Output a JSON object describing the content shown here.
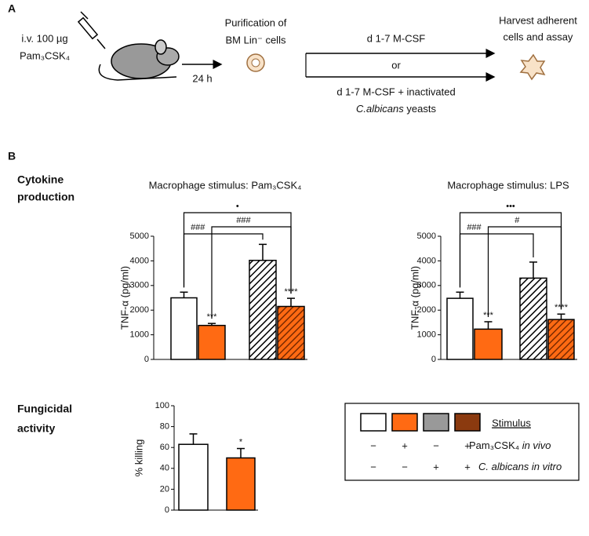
{
  "panel_a": {
    "label": "A",
    "injection": [
      "i.v. 100 µg",
      "Pam₃CSK₄"
    ],
    "delay": "24 h",
    "purification": [
      "Purification of",
      "BM Lin⁻ cells"
    ],
    "culture_top": "d 1-7 M-CSF",
    "or": "or",
    "culture_bottom": "d 1-7 M-CSF + inactivated",
    "culture_bottom_italic": "C.albicans",
    "culture_bottom_end": "yeasts",
    "harvest": [
      "Harvest adherent",
      "cells and assay"
    ]
  },
  "panel_b": {
    "label": "B",
    "row_labels": [
      [
        "Cytokine",
        "production"
      ],
      [
        "Fungicidal",
        "activity"
      ]
    ]
  },
  "chart_data": [
    {
      "type": "bar",
      "title": "Macrophage stimulus: Pam₃CSK₄",
      "y_label": "TNF-α (pg/ml)",
      "categories": [
        null,
        null,
        null,
        null
      ],
      "values": [
        2500,
        1380,
        4020,
        2150
      ],
      "errors": [
        230,
        80,
        650,
        330
      ],
      "colors": [
        "#ffffff",
        "#ff6a13",
        "#ffffff",
        "#ff6a13"
      ],
      "hatched": [
        false,
        false,
        true,
        true
      ],
      "annotations": [
        null,
        "***",
        null,
        "****"
      ],
      "comparisons": [
        "###",
        "###",
        "•"
      ],
      "ylim": [
        0,
        5000
      ],
      "yticks": [
        0,
        1000,
        2000,
        3000,
        4000,
        5000
      ]
    },
    {
      "type": "bar",
      "title": "Macrophage stimulus: LPS",
      "y_label": "TNF-α (pg/ml)",
      "categories": [
        null,
        null,
        null,
        null
      ],
      "values": [
        2480,
        1230,
        3300,
        1620
      ],
      "errors": [
        250,
        300,
        650,
        220
      ],
      "colors": [
        "#ffffff",
        "#ff6a13",
        "#ffffff",
        "#ff6a13"
      ],
      "hatched": [
        false,
        false,
        true,
        true
      ],
      "annotations": [
        null,
        "***",
        null,
        "****"
      ],
      "comparisons": [
        "###",
        "#",
        "•••"
      ],
      "ylim": [
        0,
        5000
      ],
      "yticks": [
        0,
        1000,
        2000,
        3000,
        4000,
        5000
      ]
    },
    {
      "type": "bar",
      "y_label": "% killing",
      "categories": [
        null,
        null
      ],
      "values": [
        63,
        50
      ],
      "errors": [
        10,
        9
      ],
      "colors": [
        "#ffffff",
        "#ff6a13"
      ],
      "hatched": [
        false,
        false
      ],
      "annotations": [
        null,
        "*"
      ],
      "ylim": [
        0,
        100
      ],
      "yticks": [
        0,
        20,
        40,
        60,
        80,
        100
      ]
    }
  ],
  "legend": {
    "title": "Stimulus",
    "colors": [
      "#ffffff",
      "#ff6a13",
      "#999999",
      "#8b3a0f"
    ],
    "rows": [
      {
        "label": "Pam₃CSK₄",
        "label_italic": "in vivo",
        "signs": [
          "−",
          "+",
          "−",
          "+"
        ]
      },
      {
        "label_italic": "C. albicans in vitro",
        "signs": [
          "−",
          "−",
          "+",
          "+"
        ]
      }
    ]
  }
}
